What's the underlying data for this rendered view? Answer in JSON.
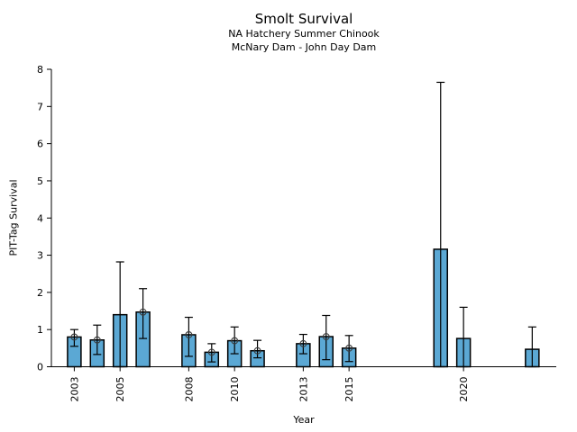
{
  "chart_data": {
    "type": "bar",
    "title": "Smolt Survival",
    "subtitle1": "NA Hatchery Summer Chinook",
    "subtitle2": "McNary Dam - John Day Dam",
    "xlabel": "Year",
    "ylabel": "PIT-Tag Survival",
    "ylim": [
      0,
      8
    ],
    "xlim": [
      2002,
      2024.05
    ],
    "yticks": [
      0,
      1,
      2,
      3,
      4,
      5,
      6,
      7,
      8
    ],
    "xticks": [
      2003,
      2005,
      2008,
      2010,
      2013,
      2015,
      2020
    ],
    "grid": false,
    "legend": "none",
    "bar_color": "#5BA8D4",
    "bar_edge_color": "#000000",
    "error_color": "#000000",
    "marker_style": "open-circle",
    "marker_color": "#3b3b3b",
    "series": [
      {
        "year": 2003,
        "value": 0.8,
        "err_low": 0.55,
        "err_high": 1.0,
        "marker": true
      },
      {
        "year": 2004,
        "value": 0.72,
        "err_low": 0.33,
        "err_high": 1.12,
        "marker": true
      },
      {
        "year": 2005,
        "value": 1.4,
        "err_low": 0.0,
        "err_high": 2.82,
        "marker": false
      },
      {
        "year": 2006,
        "value": 1.47,
        "err_low": 0.76,
        "err_high": 2.1,
        "marker": true
      },
      {
        "year": 2008,
        "value": 0.86,
        "err_low": 0.28,
        "err_high": 1.33,
        "marker": true
      },
      {
        "year": 2009,
        "value": 0.39,
        "err_low": 0.13,
        "err_high": 0.62,
        "marker": true
      },
      {
        "year": 2010,
        "value": 0.7,
        "err_low": 0.35,
        "err_high": 1.07,
        "marker": true
      },
      {
        "year": 2011,
        "value": 0.43,
        "err_low": 0.24,
        "err_high": 0.71,
        "marker": true
      },
      {
        "year": 2013,
        "value": 0.62,
        "err_low": 0.35,
        "err_high": 0.87,
        "marker": true
      },
      {
        "year": 2014,
        "value": 0.81,
        "err_low": 0.19,
        "err_high": 1.38,
        "marker": true
      },
      {
        "year": 2015,
        "value": 0.5,
        "err_low": 0.14,
        "err_high": 0.84,
        "marker": true
      },
      {
        "year": 2019,
        "value": 3.16,
        "err_low": 0.0,
        "err_high": 7.65,
        "marker": false
      },
      {
        "year": 2020,
        "value": 0.76,
        "err_low": 0.0,
        "err_high": 1.6,
        "marker": false
      },
      {
        "year": 2023,
        "value": 0.47,
        "err_low": 0.0,
        "err_high": 1.07,
        "marker": false
      }
    ]
  }
}
